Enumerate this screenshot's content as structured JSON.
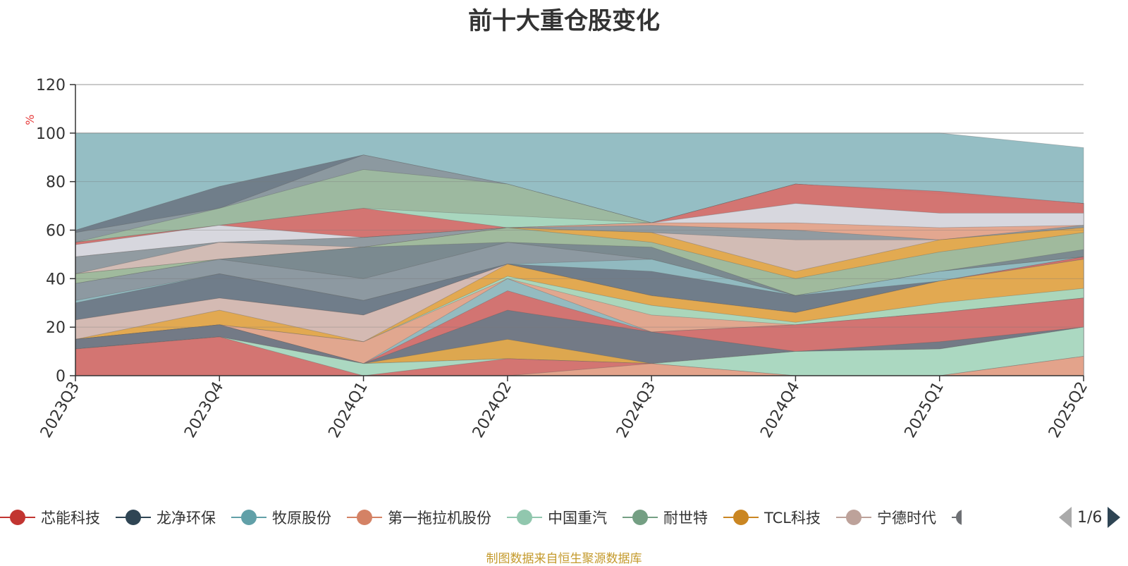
{
  "chart_data": {
    "type": "area",
    "title": "前十大重仓股变化",
    "ylabel": "%",
    "ylim": [
      0,
      120
    ],
    "yticks": [
      0,
      20,
      40,
      60,
      80,
      100,
      120
    ],
    "grid": true,
    "categories": [
      "2023Q3",
      "2023Q4",
      "2024Q1",
      "2024Q2",
      "2024Q3",
      "2024Q4",
      "2025Q1",
      "2025Q2"
    ],
    "layers": [
      {
        "color": "#91bbc2",
        "upper": [
          100,
          100,
          100,
          100,
          100,
          100,
          100,
          94
        ]
      },
      {
        "color": "#6e7b87",
        "upper": [
          60,
          78,
          91,
          79,
          63,
          79,
          75,
          71
        ]
      },
      {
        "color": "#8e9aa1",
        "upper": [
          59,
          69,
          91,
          79,
          63,
          79,
          75,
          71
        ]
      },
      {
        "color": "#9dbaa0",
        "upper": [
          55,
          69,
          85,
          79,
          63,
          79,
          75,
          71
        ]
      },
      {
        "color": "#a9d7c0",
        "upper": [
          55,
          62,
          69,
          66,
          63,
          79,
          75,
          71
        ]
      },
      {
        "color": "#d4706e",
        "upper": [
          55,
          62,
          69,
          61,
          63,
          79,
          76,
          71
        ]
      },
      {
        "color": "#d6dbe3",
        "upper": [
          54,
          62,
          57,
          61,
          63,
          71,
          67,
          67
        ]
      },
      {
        "color": "#e3a48c",
        "upper": [
          49,
          55,
          57,
          61,
          63,
          63,
          61,
          62
        ]
      },
      {
        "color": "#8e9aa1",
        "upper": [
          49,
          55,
          57,
          61,
          62,
          60,
          56,
          62
        ]
      },
      {
        "color": "#d4bdb6",
        "upper": [
          42,
          55,
          53,
          61,
          59,
          56,
          56,
          61
        ]
      },
      {
        "color": "#e2a94d",
        "upper": [
          42,
          48,
          53,
          61,
          59,
          43,
          56,
          61
        ]
      },
      {
        "color": "#9dbaa0",
        "upper": [
          42,
          48,
          53,
          61,
          55,
          40,
          51,
          59
        ]
      },
      {
        "color": "#7a8890",
        "upper": [
          38,
          48,
          53,
          55,
          53,
          33,
          43,
          52
        ]
      },
      {
        "color": "#8e9aa1",
        "upper": [
          38,
          48,
          40,
          55,
          48,
          33,
          43,
          49
        ]
      },
      {
        "color": "#91bbc2",
        "upper": [
          31,
          42,
          31,
          46,
          48,
          33,
          43,
          49
        ]
      },
      {
        "color": "#6e7b87",
        "upper": [
          30,
          42,
          31,
          46,
          43,
          33,
          39,
          49
        ]
      },
      {
        "color": "#d4706e",
        "upper": [
          23,
          32,
          25,
          46,
          33,
          26,
          39,
          49
        ]
      },
      {
        "color": "#d4bdb6",
        "upper": [
          23,
          32,
          25,
          46,
          33,
          26,
          39,
          48
        ]
      },
      {
        "color": "#e2a94d",
        "upper": [
          15,
          27,
          14,
          46,
          33,
          26,
          39,
          48
        ]
      },
      {
        "color": "#a9d7c0",
        "upper": [
          15,
          21,
          14,
          41,
          29,
          22,
          30,
          36
        ]
      },
      {
        "color": "#e3a48c",
        "upper": [
          15,
          21,
          14,
          40,
          25,
          21,
          26,
          32
        ]
      },
      {
        "color": "#91bbc2",
        "upper": [
          15,
          21,
          5,
          40,
          18,
          21,
          26,
          32
        ]
      },
      {
        "color": "#d4706e",
        "upper": [
          15,
          21,
          5,
          35,
          18,
          21,
          26,
          32
        ]
      },
      {
        "color": "#6e7b87",
        "upper": [
          15,
          21,
          5,
          27,
          18,
          10,
          14,
          20
        ]
      },
      {
        "color": "#e2a94d",
        "upper": [
          11,
          16,
          5,
          15,
          5,
          10,
          11,
          20
        ]
      },
      {
        "color": "#d6dbe3",
        "upper": [
          11,
          16,
          5,
          7,
          5,
          10,
          11,
          20
        ]
      },
      {
        "color": "#a9d7c0",
        "upper": [
          11,
          16,
          5,
          7,
          5,
          10,
          11,
          20
        ]
      },
      {
        "color": "#d4706e",
        "upper": [
          11,
          16,
          0,
          7,
          5,
          0,
          0,
          8
        ]
      },
      {
        "color": "#e3a48c",
        "upper": [
          0,
          0,
          0,
          0,
          5,
          0,
          0,
          8
        ]
      }
    ],
    "legend": [
      {
        "name": "芯能科技",
        "color": "#c23531"
      },
      {
        "name": "龙净环保",
        "color": "#2f4554"
      },
      {
        "name": "牧原股份",
        "color": "#61a0a8"
      },
      {
        "name": "第一拖拉机股份",
        "color": "#d48265"
      },
      {
        "name": "中国重汽",
        "color": "#91c7ae"
      },
      {
        "name": "耐世特",
        "color": "#749f83"
      },
      {
        "name": "TCL科技",
        "color": "#ca8622"
      },
      {
        "name": "宁德时代",
        "color": "#bda29a"
      }
    ],
    "legend_placement": "bottom"
  },
  "legend_page": "1/6",
  "footer": "制图数据来自恒生聚源数据库",
  "colors": {
    "axis": "#333333",
    "grid": "#cccccc",
    "ylabel": "#e63b3b"
  }
}
